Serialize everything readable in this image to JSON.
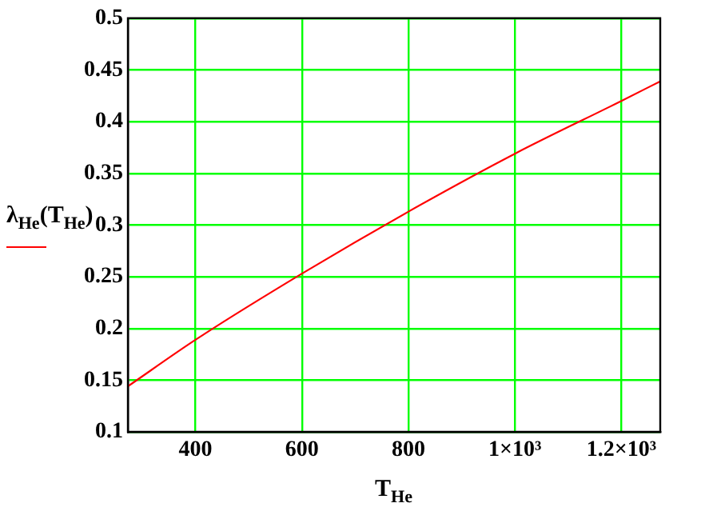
{
  "chart_data": {
    "type": "line",
    "xlabel": "T$_{He}$",
    "ylabel": "λ$_{He}$(T$_{He}$)",
    "x": [
      273,
      400,
      600,
      800,
      1000,
      1200,
      1273
    ],
    "series": [
      {
        "color": "#ff0000",
        "values": [
          0.144,
          0.189,
          0.253,
          0.313,
          0.369,
          0.42,
          0.439
        ]
      }
    ],
    "xlim": [
      273,
      1273
    ],
    "xticks": [
      400,
      600,
      800,
      {
        "value": 1000,
        "label": "1×10³"
      },
      {
        "value": 1200,
        "label": "1.2×10³"
      }
    ],
    "ylim": [
      0.1,
      0.5
    ],
    "yticks": [
      0.1,
      0.15,
      0.2,
      0.25,
      0.3,
      0.35,
      0.4,
      0.45,
      0.5
    ],
    "grid": true,
    "marker": "none",
    "line_style": "solid"
  }
}
